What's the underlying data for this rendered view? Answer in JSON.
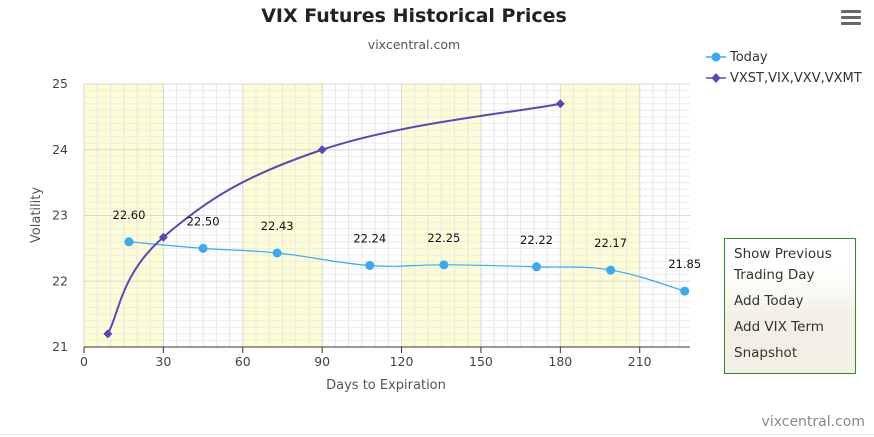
{
  "chart_data": {
    "type": "line",
    "title": "VIX Futures Historical Prices",
    "subtitle": "vixcentral.com",
    "xlabel": "Days to Expiration",
    "ylabel": "Volatility",
    "xlim": [
      0,
      229
    ],
    "ylim": [
      21,
      25
    ],
    "xticks": [
      "0",
      "30",
      "60",
      "90",
      "120",
      "150",
      "180",
      "210"
    ],
    "yticks": [
      "21",
      "22",
      "23",
      "24",
      "25"
    ],
    "grid": true,
    "shaded_bands_x": [
      [
        0,
        30
      ],
      [
        60,
        90
      ],
      [
        120,
        150
      ],
      [
        180,
        210
      ]
    ],
    "legend_position": "top-right",
    "series": [
      {
        "name": "Today",
        "color": "#39a9f1",
        "marker": "circle",
        "x": [
          17,
          45,
          73,
          108,
          136,
          171,
          199,
          227
        ],
        "y": [
          22.6,
          22.5,
          22.43,
          22.24,
          22.25,
          22.22,
          22.17,
          21.85
        ],
        "labels": [
          "22.60",
          "22.50",
          "22.43",
          "22.24",
          "22.25",
          "22.22",
          "22.17",
          "21.85"
        ]
      },
      {
        "name": "VXST,VIX,VXV,VXMT",
        "color": "#5a48b6",
        "marker": "diamond",
        "x": [
          9,
          30,
          90,
          180
        ],
        "y": [
          21.2,
          22.67,
          24.0,
          24.7
        ]
      }
    ]
  },
  "side_panel": {
    "links": [
      "Show Previous Trading Day",
      "Add Today",
      "Add VIX Term",
      "Snapshot"
    ]
  },
  "credit": "vixcentral.com",
  "menu_icon": "hamburger-menu-icon"
}
